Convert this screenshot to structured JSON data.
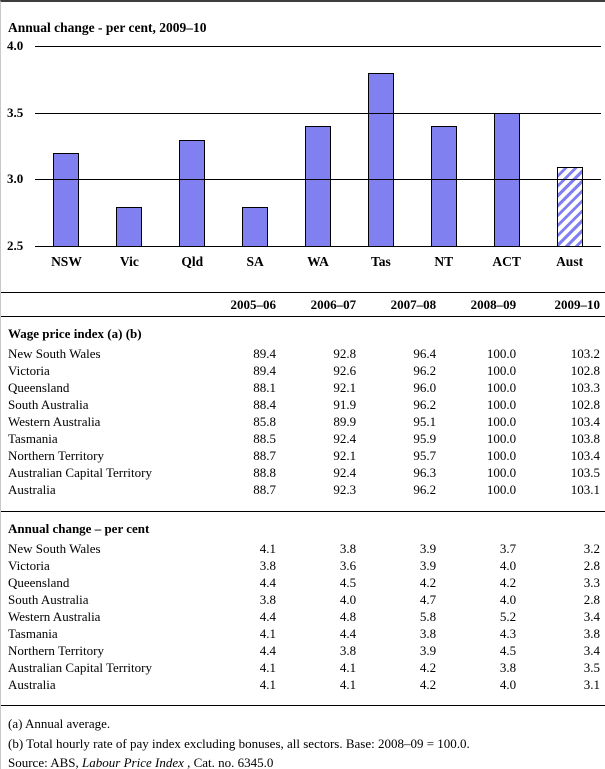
{
  "chart_data": {
    "type": "bar",
    "title": "Annual change - per cent, 2009–10",
    "categories": [
      "NSW",
      "Vic",
      "Qld",
      "SA",
      "WA",
      "Tas",
      "NT",
      "ACT",
      "Aust"
    ],
    "values": [
      3.2,
      2.8,
      3.3,
      2.8,
      3.4,
      3.8,
      3.4,
      3.5,
      3.1
    ],
    "ylim": [
      2.5,
      4.0
    ],
    "yticks": [
      "4.0",
      "3.5",
      "3.0",
      "2.5"
    ],
    "grid": true,
    "legend": "none",
    "bar_color": "#8080f0",
    "hatched_category": "Aust"
  },
  "table": {
    "columns": [
      "2005–06",
      "2006–07",
      "2007–08",
      "2008–09",
      "2009–10"
    ],
    "sections": [
      {
        "title": "Wage price index (a) (b)",
        "rows": [
          {
            "label": "New South Wales",
            "values": [
              "89.4",
              "92.8",
              "96.4",
              "100.0",
              "103.2"
            ]
          },
          {
            "label": "Victoria",
            "values": [
              "89.4",
              "92.6",
              "96.2",
              "100.0",
              "102.8"
            ]
          },
          {
            "label": "Queensland",
            "values": [
              "88.1",
              "92.1",
              "96.0",
              "100.0",
              "103.3"
            ]
          },
          {
            "label": "South Australia",
            "values": [
              "88.4",
              "91.9",
              "96.2",
              "100.0",
              "102.8"
            ]
          },
          {
            "label": "Western Australia",
            "values": [
              "85.8",
              "89.9",
              "95.1",
              "100.0",
              "103.4"
            ]
          },
          {
            "label": "Tasmania",
            "values": [
              "88.5",
              "92.4",
              "95.9",
              "100.0",
              "103.8"
            ]
          },
          {
            "label": "Northern Territory",
            "values": [
              "88.7",
              "92.1",
              "95.7",
              "100.0",
              "103.4"
            ]
          },
          {
            "label": "Australian Capital Territory",
            "values": [
              "88.8",
              "92.4",
              "96.3",
              "100.0",
              "103.5"
            ]
          },
          {
            "label": "Australia",
            "values": [
              "88.7",
              "92.3",
              "96.2",
              "100.0",
              "103.1"
            ]
          }
        ]
      },
      {
        "title": "Annual change – per cent",
        "rows": [
          {
            "label": "New South Wales",
            "values": [
              "4.1",
              "3.8",
              "3.9",
              "3.7",
              "3.2"
            ]
          },
          {
            "label": "Victoria",
            "values": [
              "3.8",
              "3.6",
              "3.9",
              "4.0",
              "2.8"
            ]
          },
          {
            "label": "Queensland",
            "values": [
              "4.4",
              "4.5",
              "4.2",
              "4.2",
              "3.3"
            ]
          },
          {
            "label": "South Australia",
            "values": [
              "3.8",
              "4.0",
              "4.7",
              "4.0",
              "2.8"
            ]
          },
          {
            "label": "Western Australia",
            "values": [
              "4.4",
              "4.8",
              "5.8",
              "5.2",
              "3.4"
            ]
          },
          {
            "label": "Tasmania",
            "values": [
              "4.1",
              "4.4",
              "3.8",
              "4.3",
              "3.8"
            ]
          },
          {
            "label": "Northern Territory",
            "values": [
              "4.4",
              "3.8",
              "3.9",
              "4.5",
              "3.4"
            ]
          },
          {
            "label": "Australian Capital Territory",
            "values": [
              "4.1",
              "4.1",
              "4.2",
              "3.8",
              "3.5"
            ]
          },
          {
            "label": "Australia",
            "values": [
              "4.1",
              "4.1",
              "4.2",
              "4.0",
              "3.1"
            ]
          }
        ]
      }
    ]
  },
  "footer": {
    "notes": [
      "(a) Annual average.",
      "(b) Total hourly rate of pay index excluding bonuses, all sectors. Base: 2008–09 = 100.0."
    ],
    "source_prefix": "Source: ABS, ",
    "source_italic": "Labour Price Index",
    "source_suffix": " , Cat. no. 6345.0"
  }
}
